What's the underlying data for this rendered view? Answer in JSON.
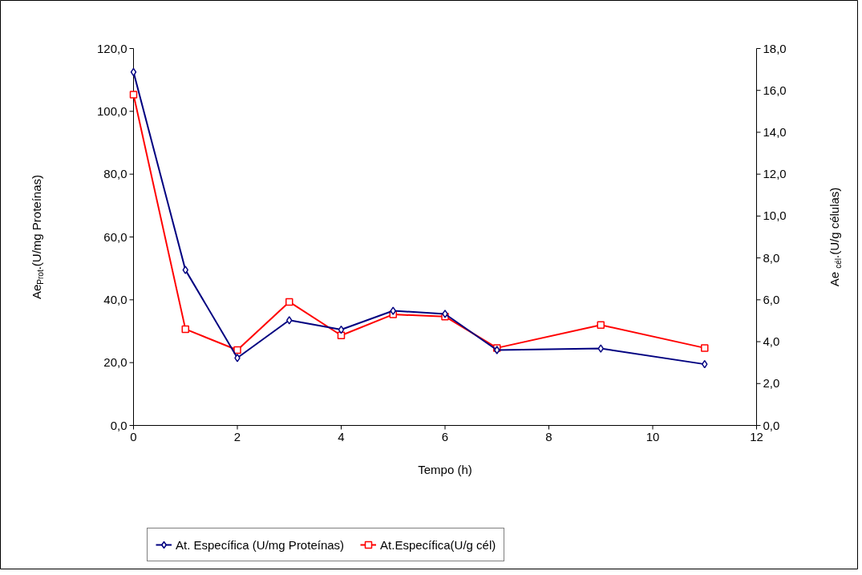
{
  "chart_data": {
    "type": "line",
    "xlabel": "Tempo (h)",
    "ylabel": "Ae$_{Prot}$.(U/mg Proteínas)",
    "y2label": "Ae $_{cél}$.(U/g células)",
    "x": [
      0,
      1,
      2,
      3,
      4,
      5,
      6,
      7,
      9,
      11
    ],
    "series": [
      {
        "name": "At. Específica (U/mg Proteínas)",
        "color": "#000080",
        "marker": "diamond",
        "values": [
          112.5,
          49.5,
          21.5,
          33.5,
          30.5,
          36.5,
          35.5,
          24,
          24.5,
          19.5
        ]
      },
      {
        "name": "At.Específica(U/g cél)",
        "color": "#ff0000",
        "marker": "square",
        "axis": "y2",
        "values": [
          15.8,
          4.6,
          3.6,
          5.9,
          4.3,
          5.3,
          5.2,
          3.7,
          4.8,
          3.7
        ]
      }
    ],
    "xlim": [
      0,
      12
    ],
    "xticks": [
      0,
      2,
      4,
      6,
      8,
      10,
      12
    ],
    "ylim": [
      0,
      120
    ],
    "yticks": [
      {
        "value": 0,
        "label": "0,0"
      },
      {
        "value": 20,
        "label": "20,0"
      },
      {
        "value": 40,
        "label": "40,0"
      },
      {
        "value": 60,
        "label": "60,0"
      },
      {
        "value": 80,
        "label": "80,0"
      },
      {
        "value": 100,
        "label": "100,0"
      },
      {
        "value": 120,
        "label": "120,0"
      }
    ],
    "y2lim": [
      0,
      18
    ],
    "y2ticks": [
      {
        "value": 0,
        "label": "0,0"
      },
      {
        "value": 2,
        "label": "2,0"
      },
      {
        "value": 4,
        "label": "4,0"
      },
      {
        "value": 6,
        "label": "6,0"
      },
      {
        "value": 8,
        "label": "8,0"
      },
      {
        "value": 10,
        "label": "10,0"
      },
      {
        "value": 12,
        "label": "12,0"
      },
      {
        "value": 14,
        "label": "14,0"
      },
      {
        "value": 16,
        "label": "16,0"
      },
      {
        "value": 18,
        "label": "18,0"
      }
    ],
    "grid": false,
    "legend": "bottom",
    "line_style": "solid"
  }
}
